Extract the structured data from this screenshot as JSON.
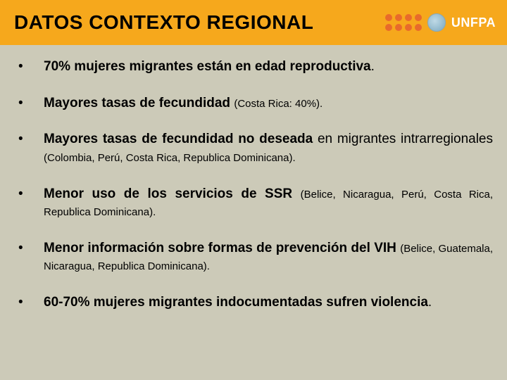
{
  "header": {
    "title": "DATOS CONTEXTO REGIONAL",
    "brand": "UNFPA",
    "header_bg": "#f6a81c",
    "dot_color": "#e86a2b",
    "brand_color": "#ffffff"
  },
  "body": {
    "bg": "#cccab8",
    "text_color": "#000000",
    "base_fontsize": 19,
    "small_fontsize": 15
  },
  "bullets": [
    {
      "parts": [
        {
          "text": "70% mujeres migrantes están en edad reproductiva",
          "bold": true
        },
        {
          "text": ".",
          "bold": false
        }
      ]
    },
    {
      "parts": [
        {
          "text": "Mayores tasas de fecundidad ",
          "bold": true
        },
        {
          "text": "(Costa Rica: 40%).",
          "bold": false,
          "small": true
        }
      ]
    },
    {
      "parts": [
        {
          "text": "Mayores tasas de fecundidad no deseada ",
          "bold": true
        },
        {
          "text": "en migrantes intrarregionales ",
          "bold": false
        },
        {
          "text": "(Colombia, Perú, Costa Rica, Republica Dominicana).",
          "bold": false,
          "small": true
        }
      ]
    },
    {
      "parts": [
        {
          "text": "Menor uso de los servicios de SSR ",
          "bold": true
        },
        {
          "text": "(Belice, Nicaragua, Perú, Costa Rica, Republica Dominicana).",
          "bold": false,
          "small": true
        }
      ]
    },
    {
      "parts": [
        {
          "text": "Menor información sobre formas de prevención del VIH ",
          "bold": true
        },
        {
          "text": "(Belice, Guatemala, Nicaragua, Republica Dominicana).",
          "bold": false,
          "small": true
        }
      ]
    },
    {
      "parts": [
        {
          "text": "60-70% mujeres migrantes indocumentadas sufren violencia",
          "bold": true
        },
        {
          "text": ".",
          "bold": false
        }
      ]
    }
  ]
}
